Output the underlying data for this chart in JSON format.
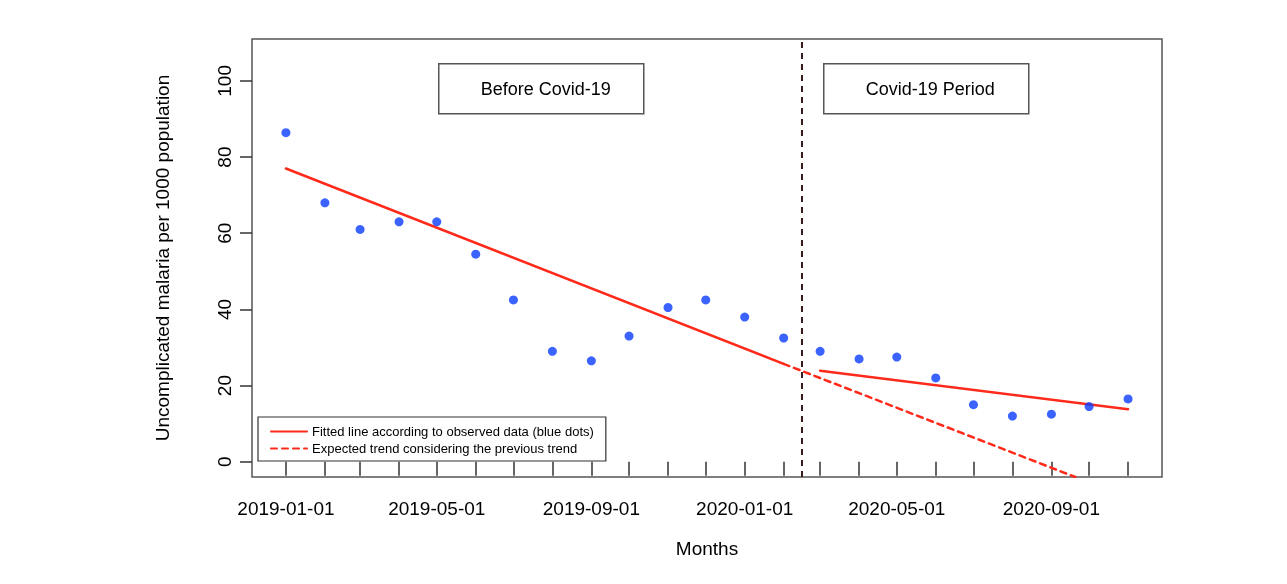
{
  "chart_data": {
    "type": "scatter",
    "xlabel": "Months",
    "ylabel": "Uncomplicated malaria per 1000 population",
    "xlim": [
      "2018-12-05",
      "2020-11-28"
    ],
    "ylim": [
      -4,
      111
    ],
    "xticks": [
      {
        "value": "2019-01-01",
        "label": "2019-01-01"
      },
      {
        "value": "2019-02-01",
        "label": null
      },
      {
        "value": "2019-03-01",
        "label": null
      },
      {
        "value": "2019-04-01",
        "label": null
      },
      {
        "value": "2019-05-01",
        "label": "2019-05-01"
      },
      {
        "value": "2019-06-01",
        "label": null
      },
      {
        "value": "2019-07-01",
        "label": null
      },
      {
        "value": "2019-08-01",
        "label": null
      },
      {
        "value": "2019-09-01",
        "label": "2019-09-01"
      },
      {
        "value": "2019-10-01",
        "label": null
      },
      {
        "value": "2019-11-01",
        "label": null
      },
      {
        "value": "2019-12-01",
        "label": null
      },
      {
        "value": "2020-01-01",
        "label": "2020-01-01"
      },
      {
        "value": "2020-02-01",
        "label": null
      },
      {
        "value": "2020-03-01",
        "label": null
      },
      {
        "value": "2020-04-01",
        "label": null
      },
      {
        "value": "2020-05-01",
        "label": "2020-05-01"
      },
      {
        "value": "2020-06-01",
        "label": null
      },
      {
        "value": "2020-07-01",
        "label": null
      },
      {
        "value": "2020-08-01",
        "label": null
      },
      {
        "value": "2020-09-01",
        "label": "2020-09-01"
      },
      {
        "value": "2020-10-01",
        "label": null
      },
      {
        "value": "2020-11-01",
        "label": null
      }
    ],
    "yticks": [
      0,
      20,
      40,
      60,
      80,
      100
    ],
    "grid": false,
    "legend": "bottom left",
    "series": [
      {
        "color": "#0a3cff",
        "marker": "circle",
        "x": [
          "2019-01-01",
          "2019-02-01",
          "2019-03-01",
          "2019-04-01",
          "2019-05-01",
          "2019-06-01",
          "2019-07-01",
          "2019-08-01",
          "2019-09-01",
          "2019-10-01",
          "2019-11-01",
          "2019-12-01",
          "2020-01-01",
          "2020-02-01",
          "2020-03-01",
          "2020-04-01",
          "2020-05-01",
          "2020-06-01",
          "2020-07-01",
          "2020-08-01",
          "2020-09-01",
          "2020-10-01",
          "2020-11-01"
        ],
        "values": [
          86.4,
          68,
          61,
          63,
          63,
          54.5,
          42.5,
          29,
          26.5,
          33,
          40.5,
          42.5,
          38,
          32.5,
          29,
          27,
          27.5,
          22,
          15,
          12,
          12.5,
          14.5,
          16.5
        ]
      },
      {
        "type": "line",
        "name": "Fitted line according to observed data (blue dots)",
        "color": "#ff2a1a",
        "line_style": "solid",
        "marker": "none",
        "x": [
          "2019-01-01",
          "2020-02-01",
          "2020-02-15",
          "2020-03-01",
          "2020-11-01"
        ],
        "values": [
          77,
          25.7,
          null,
          23.9,
          13.8
        ]
      },
      {
        "type": "line",
        "name": "Expected trend considering the previous trend",
        "color": "#ff2a1a",
        "line_style": "dashed",
        "marker": "none",
        "x": [
          "2020-02-01",
          "2020-09-20"
        ],
        "values": [
          25.7,
          -4
        ]
      }
    ],
    "ref_lines": [
      {
        "axis": "x",
        "value": "2020-02-15",
        "label": null,
        "color": "#3a1a1a",
        "line_style": "dashed"
      }
    ],
    "annotations": [
      "Before Covid-19",
      "Covid-19 Period"
    ]
  }
}
